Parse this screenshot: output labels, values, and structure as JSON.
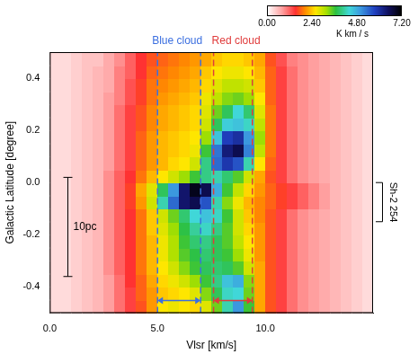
{
  "chart_data": {
    "type": "heatmap",
    "x_label": "Vlsr [km/s]",
    "y_label": "Galactic Latitude [degree]",
    "x": [
      0.25,
      0.75,
      1.25,
      1.75,
      2.25,
      2.75,
      3.25,
      3.75,
      4.25,
      4.75,
      5.25,
      5.75,
      6.25,
      6.75,
      7.25,
      7.75,
      8.25,
      8.75,
      9.25,
      9.75,
      10.25,
      10.75,
      11.25,
      11.75,
      12.25,
      12.75,
      13.25,
      13.75,
      14.25,
      14.75
    ],
    "y": [
      -0.475,
      -0.425,
      -0.375,
      -0.325,
      -0.275,
      -0.225,
      -0.175,
      -0.125,
      -0.075,
      -0.025,
      0.025,
      0.075,
      0.125,
      0.175,
      0.225,
      0.275,
      0.325,
      0.375,
      0.425,
      0.475
    ],
    "cells": [
      [
        0.3,
        0.3,
        0.4,
        0.5,
        0.6,
        0.8,
        1.1,
        1.4,
        1.7,
        2.1,
        2.6,
        2.7,
        2.6,
        2.5,
        2.8,
        3.4,
        4.2,
        5.0,
        3.6,
        2.2,
        1.7,
        1.4,
        1.1,
        0.9,
        0.8,
        0.7,
        0.6,
        0.5,
        0.4,
        0.3
      ],
      [
        0.3,
        0.3,
        0.4,
        0.5,
        0.6,
        0.8,
        1.1,
        1.4,
        1.8,
        2.1,
        2.4,
        2.5,
        2.6,
        2.8,
        3.3,
        3.8,
        4.3,
        4.4,
        3.4,
        2.2,
        1.7,
        1.4,
        1.1,
        0.9,
        0.8,
        0.7,
        0.6,
        0.5,
        0.4,
        0.3
      ],
      [
        0.3,
        0.3,
        0.4,
        0.5,
        0.6,
        0.8,
        1.1,
        1.5,
        1.8,
        2.2,
        2.5,
        2.7,
        2.9,
        3.2,
        3.6,
        4.0,
        4.6,
        4.8,
        3.3,
        2.2,
        1.7,
        1.4,
        1.1,
        0.9,
        0.8,
        0.7,
        0.6,
        0.5,
        0.4,
        0.3
      ],
      [
        0.3,
        0.3,
        0.4,
        0.5,
        0.6,
        0.9,
        1.2,
        1.5,
        1.9,
        2.3,
        2.6,
        2.9,
        3.3,
        3.6,
        3.8,
        3.9,
        3.8,
        3.5,
        2.9,
        2.2,
        1.7,
        1.4,
        1.1,
        0.9,
        0.8,
        0.7,
        0.6,
        0.5,
        0.4,
        0.3
      ],
      [
        0.3,
        0.3,
        0.4,
        0.5,
        0.6,
        0.9,
        1.2,
        1.5,
        1.9,
        2.3,
        2.7,
        3.1,
        3.5,
        3.7,
        3.9,
        3.8,
        3.6,
        3.2,
        2.7,
        2.1,
        1.7,
        1.4,
        1.1,
        0.9,
        0.8,
        0.7,
        0.6,
        0.5,
        0.4,
        0.3
      ],
      [
        0.3,
        0.3,
        0.4,
        0.5,
        0.6,
        0.9,
        1.2,
        1.5,
        1.9,
        2.3,
        2.7,
        3.1,
        3.6,
        3.9,
        4.0,
        3.8,
        3.5,
        3.0,
        2.6,
        2.1,
        1.7,
        1.4,
        1.1,
        0.9,
        0.8,
        0.7,
        0.6,
        0.5,
        0.4,
        0.3
      ],
      [
        0.3,
        0.3,
        0.4,
        0.5,
        0.6,
        0.9,
        1.2,
        1.5,
        1.9,
        2.4,
        2.8,
        3.2,
        3.7,
        4.1,
        4.3,
        4.0,
        3.5,
        2.9,
        2.5,
        2.1,
        1.7,
        1.4,
        1.1,
        0.9,
        0.8,
        0.7,
        0.6,
        0.5,
        0.4,
        0.3
      ],
      [
        0.3,
        0.3,
        0.4,
        0.5,
        0.6,
        0.9,
        1.2,
        1.5,
        1.9,
        2.4,
        2.9,
        3.4,
        3.9,
        4.4,
        4.6,
        4.3,
        3.6,
        2.9,
        2.4,
        2.0,
        1.7,
        1.4,
        1.1,
        0.9,
        0.8,
        0.7,
        0.6,
        0.5,
        0.4,
        0.3
      ],
      [
        0.3,
        0.3,
        0.4,
        0.5,
        0.6,
        0.9,
        1.2,
        1.6,
        2.1,
        2.9,
        4.2,
        5.4,
        6.4,
        6.6,
        5.6,
        4.2,
        3.3,
        2.7,
        2.3,
        2.0,
        1.8,
        1.6,
        1.4,
        1.2,
        1.0,
        0.8,
        0.6,
        0.5,
        0.4,
        0.3
      ],
      [
        0.3,
        0.3,
        0.4,
        0.5,
        0.6,
        0.9,
        1.2,
        1.6,
        2.2,
        2.8,
        3.8,
        5.0,
        6.4,
        7.0,
        6.6,
        4.8,
        3.6,
        3.0,
        2.5,
        2.1,
        1.8,
        1.6,
        1.4,
        1.2,
        1.0,
        0.8,
        0.6,
        0.5,
        0.4,
        0.3
      ],
      [
        0.3,
        0.3,
        0.4,
        0.5,
        0.6,
        0.9,
        1.2,
        1.5,
        1.9,
        2.3,
        2.6,
        2.9,
        3.2,
        3.6,
        4.0,
        4.2,
        3.9,
        3.5,
        2.9,
        2.2,
        1.7,
        1.4,
        1.1,
        0.9,
        0.8,
        0.7,
        0.6,
        0.5,
        0.4,
        0.3
      ],
      [
        0.3,
        0.3,
        0.4,
        0.5,
        0.6,
        0.8,
        1.1,
        1.4,
        1.8,
        2.1,
        2.3,
        2.5,
        2.6,
        2.9,
        4.0,
        5.4,
        5.9,
        5.6,
        4.2,
        2.6,
        1.8,
        1.4,
        1.1,
        0.9,
        0.8,
        0.7,
        0.6,
        0.5,
        0.4,
        0.3
      ],
      [
        0.3,
        0.3,
        0.4,
        0.5,
        0.6,
        0.8,
        1.1,
        1.4,
        1.8,
        2.1,
        2.3,
        2.4,
        2.5,
        2.7,
        3.6,
        5.3,
        6.3,
        6.6,
        5.2,
        3.0,
        1.9,
        1.4,
        1.1,
        0.9,
        0.8,
        0.7,
        0.6,
        0.5,
        0.4,
        0.3
      ],
      [
        0.3,
        0.3,
        0.4,
        0.5,
        0.6,
        0.8,
        1.1,
        1.4,
        1.8,
        2.1,
        2.3,
        2.4,
        2.5,
        2.6,
        3.2,
        4.6,
        5.8,
        6.0,
        5.0,
        3.2,
        1.9,
        1.4,
        1.1,
        0.9,
        0.8,
        0.7,
        0.6,
        0.5,
        0.4,
        0.3
      ],
      [
        0.3,
        0.3,
        0.4,
        0.5,
        0.6,
        0.8,
        1.1,
        1.4,
        1.7,
        2.0,
        2.2,
        2.3,
        2.4,
        2.5,
        2.9,
        3.8,
        4.5,
        4.6,
        4.3,
        3.0,
        1.9,
        1.4,
        1.1,
        0.9,
        0.8,
        0.7,
        0.6,
        0.5,
        0.4,
        0.3
      ],
      [
        0.3,
        0.3,
        0.4,
        0.5,
        0.6,
        0.8,
        1.1,
        1.4,
        1.7,
        2.0,
        2.2,
        2.3,
        2.4,
        2.5,
        2.8,
        3.4,
        3.8,
        4.4,
        3.9,
        2.8,
        1.9,
        1.4,
        1.1,
        0.9,
        0.8,
        0.7,
        0.6,
        0.5,
        0.4,
        0.3
      ],
      [
        0.3,
        0.3,
        0.4,
        0.5,
        0.6,
        0.8,
        1.0,
        1.3,
        1.6,
        1.9,
        2.1,
        2.2,
        2.3,
        2.4,
        2.7,
        3.0,
        3.3,
        3.4,
        3.2,
        2.6,
        1.8,
        1.4,
        1.1,
        0.9,
        0.8,
        0.7,
        0.6,
        0.5,
        0.4,
        0.3
      ],
      [
        0.3,
        0.3,
        0.4,
        0.5,
        0.6,
        0.7,
        1.0,
        1.3,
        1.6,
        1.9,
        2.0,
        2.1,
        2.2,
        2.3,
        2.5,
        2.8,
        3.0,
        3.0,
        2.9,
        2.4,
        1.8,
        1.4,
        1.1,
        0.9,
        0.8,
        0.7,
        0.6,
        0.5,
        0.4,
        0.3
      ],
      [
        0.3,
        0.3,
        0.4,
        0.5,
        0.6,
        0.7,
        1.0,
        1.2,
        1.5,
        1.8,
        1.9,
        2.0,
        2.1,
        2.2,
        2.4,
        2.6,
        2.7,
        2.7,
        2.6,
        2.3,
        1.8,
        1.4,
        1.1,
        0.9,
        0.8,
        0.7,
        0.6,
        0.5,
        0.4,
        0.3
      ],
      [
        0.3,
        0.3,
        0.4,
        0.5,
        0.5,
        0.7,
        0.9,
        1.2,
        1.5,
        1.7,
        1.8,
        1.9,
        2.0,
        2.1,
        2.2,
        2.4,
        2.5,
        2.5,
        2.4,
        2.2,
        1.7,
        1.3,
        1.0,
        0.9,
        0.8,
        0.7,
        0.6,
        0.5,
        0.4,
        0.3
      ]
    ],
    "xlim": [
      0,
      15
    ],
    "ylim": [
      -0.5,
      0.5
    ],
    "xticks": [
      {
        "value": 0,
        "label": "0.0"
      },
      {
        "value": 5,
        "label": "5.0"
      },
      {
        "value": 10,
        "label": "10.0"
      }
    ],
    "yticks": [
      -0.4,
      -0.2,
      {
        "value": 0,
        "label": "0.0"
      },
      0.2,
      0.4
    ],
    "grid": false,
    "colorbar": {
      "label": "K km / s",
      "range": [
        0,
        7.2
      ],
      "ticks": [
        {
          "value": 0,
          "label": "0.00"
        },
        {
          "value": 2.4,
          "label": "2.40"
        },
        {
          "value": 4.8,
          "label": "4.80"
        },
        {
          "value": 7.2,
          "label": "7.20"
        }
      ]
    },
    "annotations": [
      {
        "label": "Blue cloud",
        "x_range": [
          5.0,
          7.0
        ],
        "color": "#3b6fe0"
      },
      {
        "label": "Red cloud",
        "x_range": [
          7.6,
          9.4
        ],
        "color": "#e03b3b"
      }
    ],
    "scale_bar": {
      "label": "10pc",
      "x": 0.8,
      "y_range": [
        -0.36,
        0.02
      ]
    },
    "bracket": {
      "label": "Sh-2 254",
      "y_range": [
        -0.15,
        0.0
      ]
    }
  }
}
